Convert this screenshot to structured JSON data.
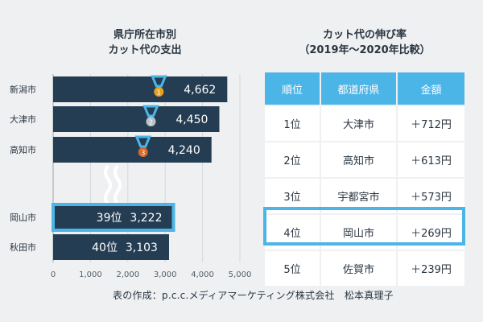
{
  "left_chart": {
    "title_line1": "県庁所在市別",
    "title_line2": "カット代の支出"
  },
  "right_table": {
    "title_line1": "カット代の伸び率",
    "title_line2": "（2019年～2020年比較）",
    "headers": [
      "順位",
      "都道府県",
      "金額"
    ],
    "rows": [
      {
        "rank": "1位",
        "city": "大津市",
        "amount": "＋712円"
      },
      {
        "rank": "2位",
        "city": "高知市",
        "amount": "＋613円"
      },
      {
        "rank": "3位",
        "city": "宇都宮市",
        "amount": "＋573円"
      },
      {
        "rank": "4位",
        "city": "岡山市",
        "amount": "＋269円"
      },
      {
        "rank": "5位",
        "city": "佐賀市",
        "amount": "＋239円"
      }
    ],
    "highlight_row": 3
  },
  "credit": "表の作成：p.c.c.メディアマーケティング株式会社　松本真理子",
  "colors": {
    "bar": "#243d52",
    "highlight": "#4cb5e8",
    "background": "#eef0f2",
    "medal_ribbon": "#4cb5e8",
    "gold": "#e8a020",
    "silver": "#b9c2c8",
    "bronze": "#d86a2a"
  },
  "chart_data": {
    "type": "bar",
    "orientation": "horizontal",
    "categories": [
      "新潟市",
      "大津市",
      "高知市",
      "岡山市",
      "秋田市"
    ],
    "values": [
      4662,
      4450,
      4240,
      3222,
      3103
    ],
    "value_labels": [
      "4,662",
      "4,450",
      "4,240",
      "3,222",
      "3,103"
    ],
    "rank_labels": [
      "",
      "",
      "",
      "39位",
      "40位"
    ],
    "medals": [
      {
        "index": 0,
        "label": "1",
        "color": "gold"
      },
      {
        "index": 1,
        "label": "2",
        "color": "silver"
      },
      {
        "index": 2,
        "label": "3",
        "color": "bronze"
      }
    ],
    "highlight_index": 3,
    "break_after_index": 2,
    "xlim": [
      0,
      5000
    ],
    "x_ticks": [
      0,
      1000,
      2000,
      3000,
      4000,
      5000
    ],
    "x_tick_labels": [
      "0",
      "1,000",
      "2,000",
      "3,000",
      "4,000",
      "5,000"
    ],
    "grid": true
  }
}
